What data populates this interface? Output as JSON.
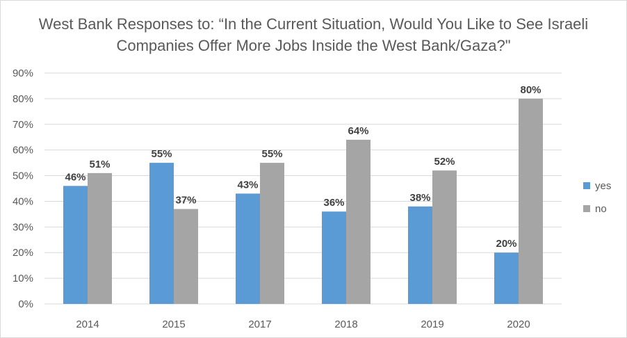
{
  "chart_data": {
    "type": "bar",
    "title": "West Bank Responses to: “In the Current Situation, Would You Like to See Israeli Companies Offer More Jobs Inside the West Bank/Gaza?\"",
    "categories": [
      "2014",
      "2015",
      "2017",
      "2018",
      "2019",
      "2020"
    ],
    "series": [
      {
        "name": "yes",
        "values": [
          46,
          55,
          43,
          36,
          38,
          20
        ],
        "labels": [
          "46%",
          "55%",
          "43%",
          "36%",
          "38%",
          "20%"
        ],
        "color": "#5b9bd5"
      },
      {
        "name": "no",
        "values": [
          51,
          37,
          55,
          64,
          52,
          80
        ],
        "labels": [
          "51%",
          "37%",
          "55%",
          "64%",
          "52%",
          "80%"
        ],
        "color": "#a5a5a5"
      }
    ],
    "ylim": [
      0,
      90
    ],
    "yticks": [
      {
        "value": 0,
        "label": "0%"
      },
      {
        "value": 10,
        "label": "10%"
      },
      {
        "value": 20,
        "label": "20%"
      },
      {
        "value": 30,
        "label": "30%"
      },
      {
        "value": 40,
        "label": "40%"
      },
      {
        "value": 50,
        "label": "50%"
      },
      {
        "value": 60,
        "label": "60%"
      },
      {
        "value": 70,
        "label": "70%"
      },
      {
        "value": 80,
        "label": "80%"
      },
      {
        "value": 90,
        "label": "90%"
      }
    ],
    "xlabel": "",
    "ylabel": "",
    "grid": true,
    "legend_position": "right",
    "gridline_color": "#d9d9d9"
  }
}
